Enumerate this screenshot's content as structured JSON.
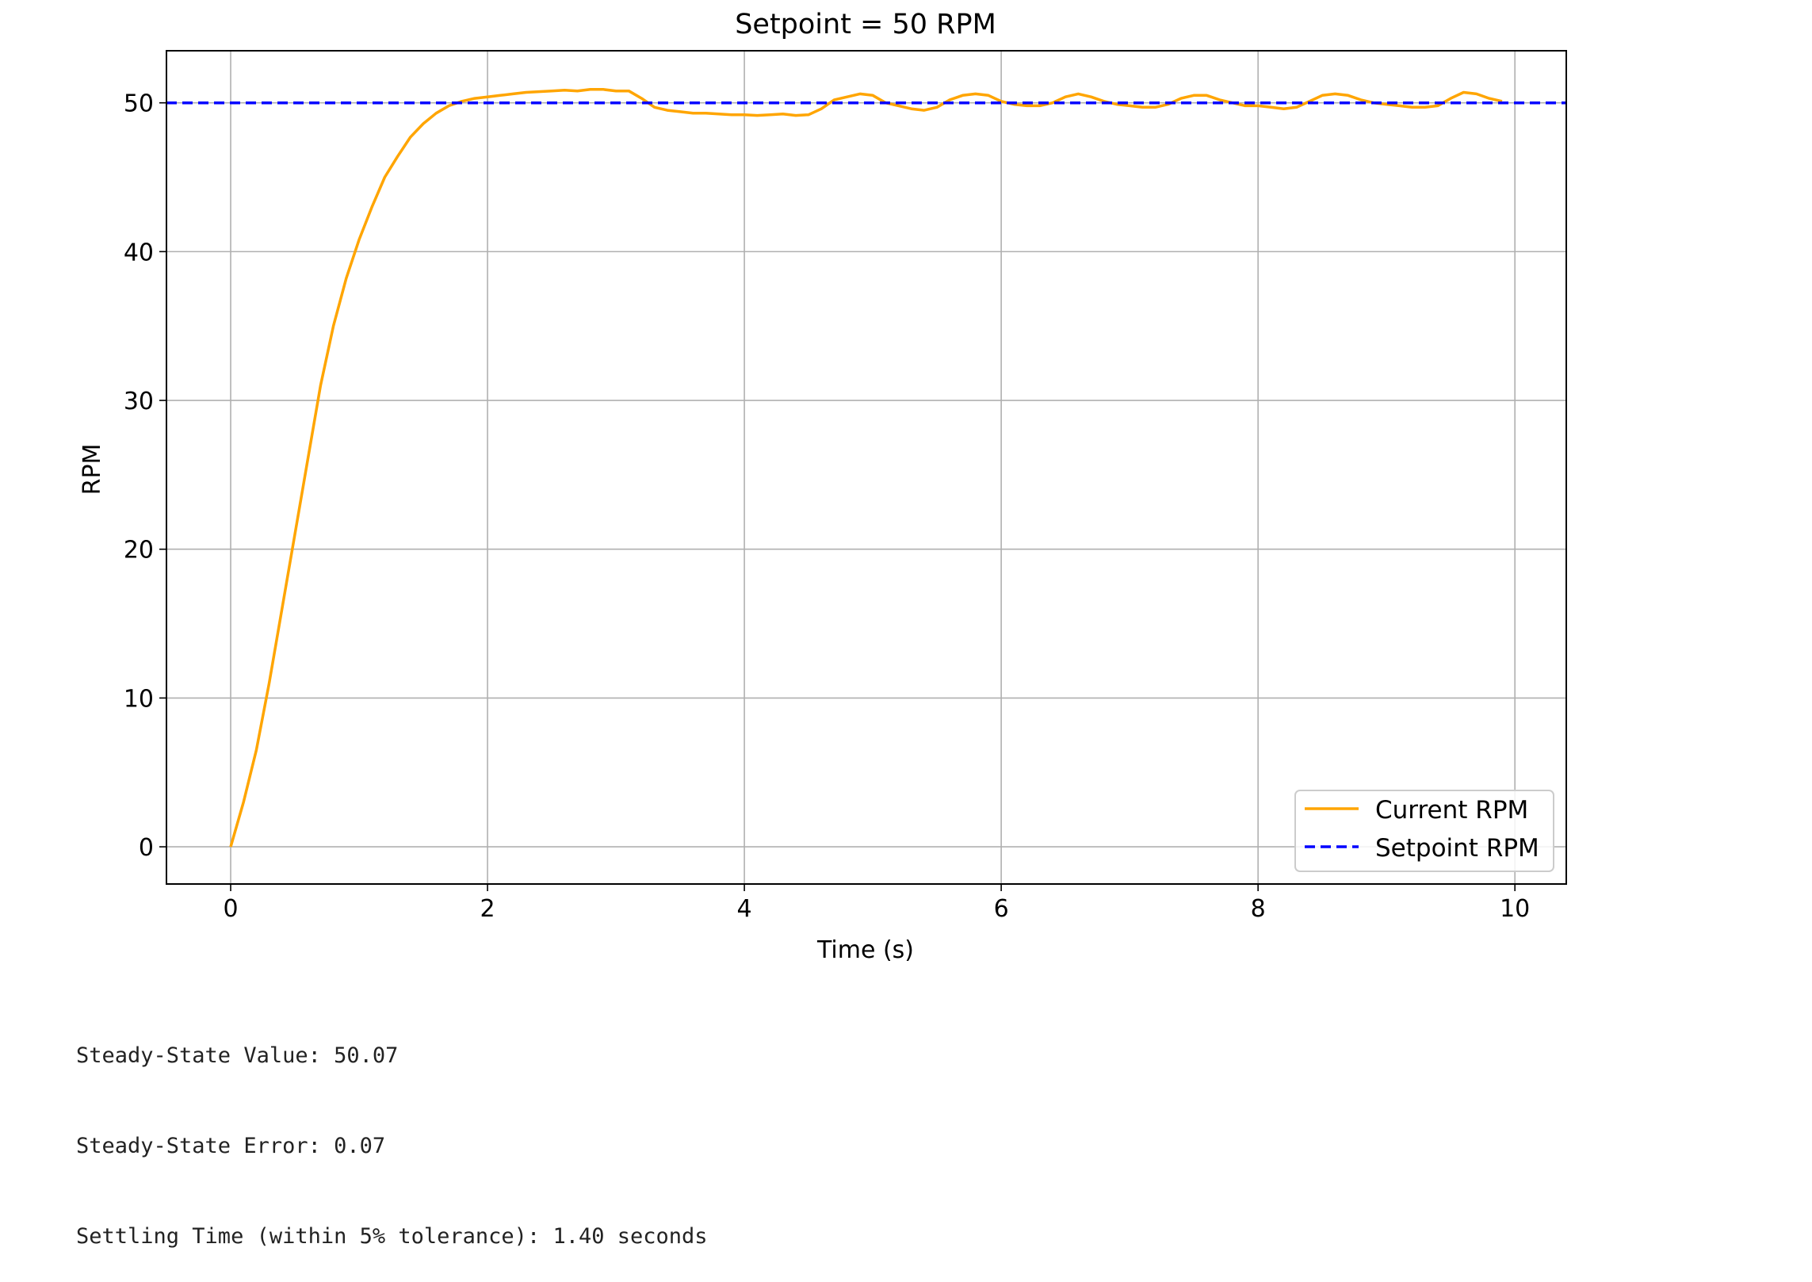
{
  "chart_data": {
    "type": "line",
    "title": "Setpoint = 50 RPM",
    "xlabel": "Time (s)",
    "ylabel": "RPM",
    "xlim": [
      -0.5,
      10.4
    ],
    "ylim": [
      -2.5,
      53.5
    ],
    "xticks": [
      0,
      2,
      4,
      6,
      8,
      10
    ],
    "yticks": [
      0,
      10,
      20,
      30,
      40,
      50
    ],
    "grid": true,
    "legend_position": "bottom-right",
    "series": [
      {
        "name": "Current RPM",
        "color": "#ffa500",
        "style": "solid",
        "x": [
          0,
          0.1,
          0.2,
          0.3,
          0.4,
          0.5,
          0.6,
          0.7,
          0.8,
          0.9,
          1.0,
          1.1,
          1.2,
          1.3,
          1.4,
          1.5,
          1.6,
          1.7,
          1.8,
          1.9,
          2.0,
          2.1,
          2.2,
          2.3,
          2.4,
          2.5,
          2.6,
          2.7,
          2.8,
          2.9,
          3.0,
          3.1,
          3.2,
          3.3,
          3.4,
          3.5,
          3.6,
          3.7,
          3.8,
          3.9,
          4.0,
          4.1,
          4.2,
          4.3,
          4.4,
          4.5,
          4.6,
          4.7,
          4.8,
          4.9,
          5.0,
          5.1,
          5.2,
          5.3,
          5.4,
          5.5,
          5.6,
          5.7,
          5.8,
          5.9,
          6.0,
          6.1,
          6.2,
          6.3,
          6.4,
          6.5,
          6.6,
          6.7,
          6.8,
          6.9,
          7.0,
          7.1,
          7.2,
          7.3,
          7.4,
          7.5,
          7.6,
          7.7,
          7.8,
          7.9,
          8.0,
          8.1,
          8.2,
          8.3,
          8.4,
          8.5,
          8.6,
          8.7,
          8.8,
          8.9,
          9.0,
          9.1,
          9.2,
          9.3,
          9.4,
          9.5,
          9.6,
          9.7,
          9.8,
          9.9
        ],
        "y": [
          0,
          3.0,
          6.5,
          11.0,
          16.0,
          21.0,
          26.0,
          31.0,
          35.0,
          38.2,
          40.8,
          43.0,
          45.0,
          46.4,
          47.7,
          48.6,
          49.3,
          49.8,
          50.1,
          50.3,
          50.4,
          50.5,
          50.6,
          50.7,
          50.75,
          50.8,
          50.85,
          50.8,
          50.9,
          50.9,
          50.8,
          50.8,
          50.3,
          49.7,
          49.5,
          49.4,
          49.3,
          49.3,
          49.25,
          49.2,
          49.2,
          49.15,
          49.2,
          49.25,
          49.15,
          49.2,
          49.6,
          50.2,
          50.4,
          50.6,
          50.5,
          50.0,
          49.8,
          49.6,
          49.5,
          49.7,
          50.2,
          50.5,
          50.6,
          50.5,
          50.1,
          49.9,
          49.8,
          49.8,
          50.0,
          50.4,
          50.6,
          50.4,
          50.1,
          49.9,
          49.8,
          49.7,
          49.7,
          49.9,
          50.3,
          50.5,
          50.5,
          50.2,
          50.0,
          49.8,
          49.8,
          49.7,
          49.6,
          49.7,
          50.1,
          50.5,
          50.6,
          50.5,
          50.2,
          50.0,
          49.9,
          49.8,
          49.7,
          49.7,
          49.8,
          50.3,
          50.7,
          50.6,
          50.3,
          50.1
        ]
      },
      {
        "name": "Setpoint RPM",
        "color": "#0000ff",
        "style": "dashed",
        "x": [
          -0.5,
          10.4
        ],
        "y": [
          50,
          50
        ]
      }
    ]
  },
  "output": {
    "line1": "Steady-State Value: 50.07",
    "line2": "Steady-State Error: 0.07",
    "line3": "Settling Time (within 5% tolerance): 1.40 seconds"
  }
}
